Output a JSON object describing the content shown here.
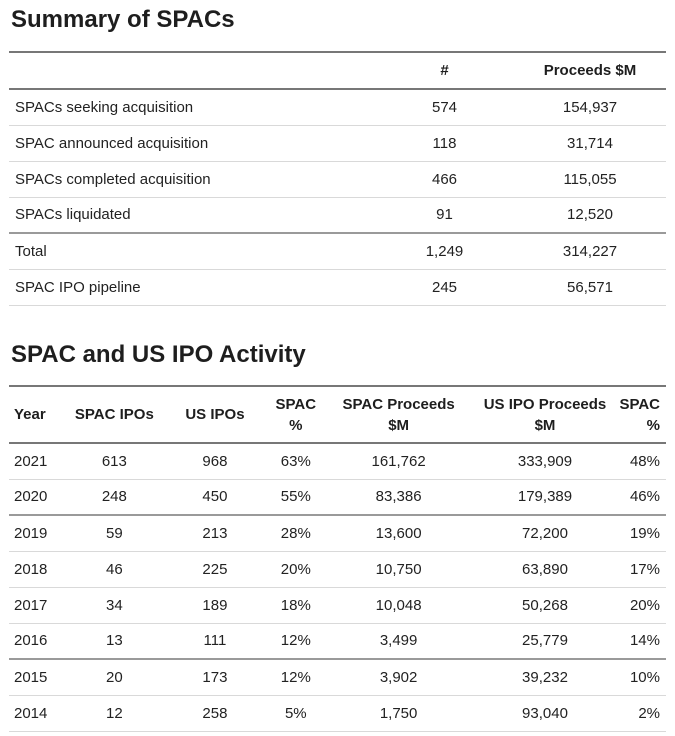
{
  "summary": {
    "title": "Summary of SPACs",
    "headers": {
      "label": "",
      "count": "#",
      "proceeds": "Proceeds $M"
    },
    "rows": [
      {
        "label": "SPACs seeking acquisition",
        "count": "574",
        "proceeds": "154,937"
      },
      {
        "label": "SPAC announced acquisition",
        "count": "118",
        "proceeds": "31,714"
      },
      {
        "label": "SPACs completed acquisition",
        "count": "466",
        "proceeds": "115,055"
      },
      {
        "label": "SPACs liquidated",
        "count": "91",
        "proceeds": "12,520"
      },
      {
        "label": "Total",
        "count": "1,249",
        "proceeds": "314,227"
      },
      {
        "label": "SPAC IPO pipeline",
        "count": "245",
        "proceeds": "56,571"
      }
    ]
  },
  "activity": {
    "title": "SPAC and US IPO Activity",
    "headers": {
      "year": "Year",
      "spac_ipos": "SPAC IPOs",
      "us_ipos": "US IPOs",
      "spac_pct_line1": "SPAC",
      "spac_pct_line2": "%",
      "spac_proceeds_line1": "SPAC Proceeds",
      "spac_proceeds_line2": "$M",
      "us_proceeds_line1": "US IPO Proceeds",
      "us_proceeds_line2": "$M",
      "spac_pct2_line1": "SPAC",
      "spac_pct2_line2": "%"
    },
    "rows": [
      {
        "year": "2021",
        "spac_ipos": "613",
        "us_ipos": "968",
        "spac_pct": "63%",
        "spac_proceeds": "161,762",
        "us_proceeds": "333,909",
        "spac_pct2": "48%"
      },
      {
        "year": "2020",
        "spac_ipos": "248",
        "us_ipos": "450",
        "spac_pct": "55%",
        "spac_proceeds": "83,386",
        "us_proceeds": "179,389",
        "spac_pct2": "46%"
      },
      {
        "year": "2019",
        "spac_ipos": "59",
        "us_ipos": "213",
        "spac_pct": "28%",
        "spac_proceeds": "13,600",
        "us_proceeds": "72,200",
        "spac_pct2": "19%"
      },
      {
        "year": "2018",
        "spac_ipos": "46",
        "us_ipos": "225",
        "spac_pct": "20%",
        "spac_proceeds": "10,750",
        "us_proceeds": "63,890",
        "spac_pct2": "17%"
      },
      {
        "year": "2017",
        "spac_ipos": "34",
        "us_ipos": "189",
        "spac_pct": "18%",
        "spac_proceeds": "10,048",
        "us_proceeds": "50,268",
        "spac_pct2": "20%"
      },
      {
        "year": "2016",
        "spac_ipos": "13",
        "us_ipos": "111",
        "spac_pct": "12%",
        "spac_proceeds": "3,499",
        "us_proceeds": "25,779",
        "spac_pct2": "14%"
      },
      {
        "year": "2015",
        "spac_ipos": "20",
        "us_ipos": "173",
        "spac_pct": "12%",
        "spac_proceeds": "3,902",
        "us_proceeds": "39,232",
        "spac_pct2": "10%"
      },
      {
        "year": "2014",
        "spac_ipos": "12",
        "us_ipos": "258",
        "spac_pct": "5%",
        "spac_proceeds": "1,750",
        "us_proceeds": "93,040",
        "spac_pct2": "2%"
      }
    ]
  }
}
